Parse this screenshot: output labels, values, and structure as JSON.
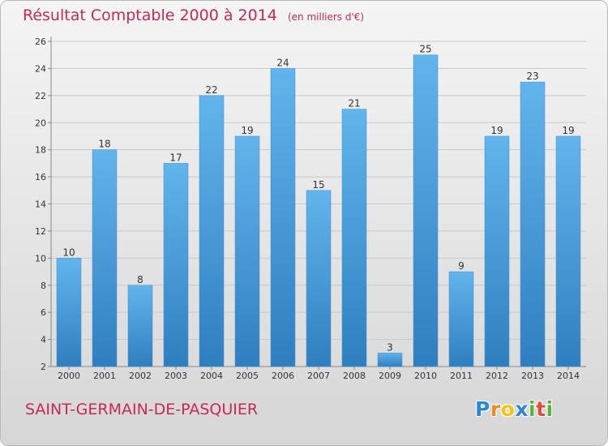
{
  "title": "Résultat Comptable 2000 à 2014",
  "unit_note": "(en milliers d'€)",
  "place_name": "SAINT-GERMAIN-DE-PASQUIER",
  "logo": {
    "letters": [
      "P",
      "r",
      "o",
      "x",
      "i",
      "t",
      "i"
    ],
    "colors": [
      "#2c86d6",
      "#ef8a1c",
      "#f3c318",
      "#2c86d6",
      "#55b53a",
      "#e24a3b",
      "#55b53a"
    ]
  },
  "colors": {
    "bar_light": "#62b4ec",
    "bar_dark": "#2f7fc0",
    "grid": "#c9c9c9",
    "axis": "#888888"
  },
  "chart_data": {
    "type": "bar",
    "title": "Résultat Comptable 2000 à 2014",
    "ylabel": "",
    "xlabel": "",
    "categories": [
      "2000",
      "2001",
      "2002",
      "2003",
      "2004",
      "2005",
      "2006",
      "2007",
      "2008",
      "2009",
      "2010",
      "2011",
      "2012",
      "2013",
      "2014"
    ],
    "values": [
      10,
      18,
      8,
      17,
      22,
      19,
      24,
      15,
      21,
      3,
      25,
      9,
      19,
      23,
      19
    ],
    "ylim": [
      2,
      26
    ],
    "yticks": [
      2,
      4,
      6,
      8,
      10,
      12,
      14,
      16,
      18,
      20,
      22,
      24,
      26
    ],
    "grid": true,
    "data_labels": true
  }
}
